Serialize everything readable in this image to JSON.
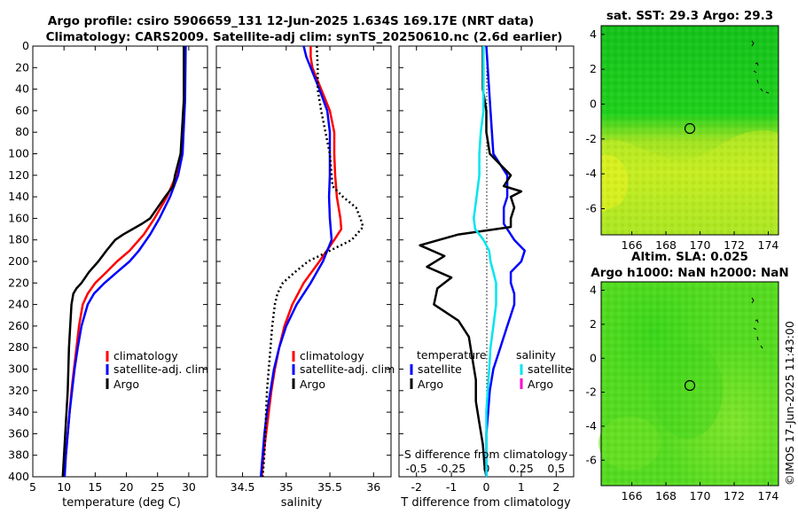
{
  "titles": {
    "line1": "Argo profile: csiro 5906659_131 12-Jun-2025 1.634S 169.17E (NRT data)",
    "line2": "Climatology: CARS2009. Satellite-adj clim: synTS_20250610.nc (2.6d earlier)"
  },
  "watermark": "©IMOS 17-Jun-2025 11:43:00",
  "colors": {
    "climatology": "#ff0000",
    "satellite": "#0000ff",
    "argo": "#000000",
    "sal_satellite": "#00e5ee",
    "sal_argo": "#ff00cc"
  },
  "chart_data": [
    {
      "type": "line",
      "id": "temperature",
      "xlabel": "temperature (deg C)",
      "xlim": [
        5,
        33
      ],
      "ylim": [
        400,
        0
      ],
      "xticks": [
        "5",
        "10",
        "15",
        "20",
        "25",
        "30"
      ],
      "yticks": [
        "0",
        "20",
        "40",
        "60",
        "80",
        "100",
        "120",
        "140",
        "160",
        "180",
        "200",
        "220",
        "240",
        "260",
        "280",
        "300",
        "320",
        "340",
        "360",
        "380",
        "400"
      ],
      "legend": [
        "climatology",
        "satellite-adj. clim",
        "Argo"
      ],
      "series": [
        {
          "name": "climatology",
          "depth": [
            0,
            50,
            100,
            120,
            140,
            160,
            175,
            190,
            200,
            210,
            220,
            230,
            240,
            260,
            280,
            300,
            320,
            340,
            360,
            380,
            400
          ],
          "values": [
            29.4,
            29.3,
            28.9,
            28.0,
            26.5,
            24.5,
            22.8,
            20.5,
            18.5,
            16.8,
            15.0,
            13.8,
            13.0,
            12.4,
            12.0,
            11.6,
            11.2,
            10.9,
            10.6,
            10.3,
            10.0
          ]
        },
        {
          "name": "satellite-adj. clim",
          "depth": [
            0,
            50,
            100,
            120,
            140,
            160,
            175,
            190,
            200,
            210,
            220,
            230,
            240,
            260,
            280,
            300,
            320,
            340,
            360,
            380,
            400
          ],
          "values": [
            29.5,
            29.4,
            29.0,
            28.3,
            27.0,
            25.3,
            23.8,
            22.0,
            20.5,
            18.5,
            16.5,
            14.8,
            13.8,
            12.8,
            12.2,
            11.7,
            11.3,
            10.9,
            10.6,
            10.3,
            10.1
          ]
        },
        {
          "name": "Argo",
          "depth": [
            0,
            50,
            100,
            120,
            130,
            140,
            150,
            160,
            165,
            170,
            175,
            180,
            185,
            190,
            200,
            210,
            220,
            225,
            230,
            240,
            260,
            280,
            300,
            320,
            340,
            360,
            380,
            400
          ],
          "values": [
            29.2,
            29.2,
            28.7,
            27.8,
            27.5,
            26.2,
            25.0,
            23.8,
            22.5,
            21.0,
            19.5,
            18.2,
            17.5,
            16.8,
            15.5,
            14.0,
            12.8,
            12.0,
            11.5,
            11.2,
            11.0,
            10.8,
            10.7,
            10.6,
            10.4,
            10.2,
            10.0,
            9.8
          ]
        }
      ]
    },
    {
      "type": "line",
      "id": "salinity",
      "xlabel": "salinity",
      "xlim": [
        34.2,
        36.2
      ],
      "ylim": [
        400,
        0
      ],
      "xticks": [
        "34.5",
        "35",
        "35.5",
        "36"
      ],
      "legend": [
        "climatology",
        "satellite-adj. clim",
        "Argo"
      ],
      "series": [
        {
          "name": "climatology",
          "depth": [
            0,
            10,
            20,
            40,
            60,
            80,
            100,
            120,
            140,
            160,
            170,
            180,
            200,
            220,
            240,
            260,
            280,
            300,
            320,
            340,
            360,
            380,
            400
          ],
          "values": [
            35.28,
            35.28,
            35.3,
            35.4,
            35.5,
            35.55,
            35.55,
            35.56,
            35.58,
            35.62,
            35.63,
            35.55,
            35.38,
            35.2,
            35.07,
            34.98,
            34.92,
            34.87,
            34.83,
            34.8,
            34.77,
            34.74,
            34.72
          ]
        },
        {
          "name": "satellite-adj. clim",
          "depth": [
            0,
            10,
            20,
            40,
            60,
            80,
            100,
            120,
            140,
            160,
            180,
            200,
            220,
            240,
            260,
            280,
            300,
            320,
            340,
            360,
            380,
            400
          ],
          "values": [
            35.2,
            35.23,
            35.28,
            35.38,
            35.47,
            35.5,
            35.5,
            35.5,
            35.49,
            35.5,
            35.52,
            35.42,
            35.28,
            35.12,
            35.0,
            34.92,
            34.86,
            34.82,
            34.78,
            34.75,
            34.73,
            34.71
          ]
        },
        {
          "name": "Argo",
          "depth": [
            0,
            20,
            40,
            60,
            80,
            100,
            120,
            130,
            140,
            150,
            160,
            168,
            180,
            190,
            200,
            210,
            220,
            230,
            240,
            260,
            280,
            300,
            320,
            340,
            360,
            380,
            400
          ],
          "values": [
            35.35,
            35.36,
            35.36,
            35.4,
            35.45,
            35.5,
            35.52,
            35.53,
            35.65,
            35.8,
            35.85,
            35.88,
            35.75,
            35.5,
            35.25,
            35.1,
            34.96,
            34.9,
            34.87,
            34.84,
            34.82,
            34.8,
            34.78,
            34.77,
            34.76,
            34.75,
            34.73
          ]
        }
      ]
    },
    {
      "type": "line",
      "id": "difference",
      "xlabel": "T difference from climatology",
      "xlabel_top": "S difference from climatology",
      "xlim": [
        -2.5,
        2.5
      ],
      "ylim": [
        400,
        0
      ],
      "xticks": [
        "-2",
        "-1",
        "0",
        "1",
        "2"
      ],
      "sticks": [
        "-0.5",
        "-0.25",
        "0",
        "0.25",
        "0.5"
      ],
      "legend_t_title": "temperature",
      "legend_s_title": "salinity",
      "legend_t": [
        "satellite",
        "Argo"
      ],
      "legend_s": [
        "satellite",
        "Argo"
      ],
      "series": [
        {
          "name": "T satellite",
          "depth": [
            0,
            50,
            100,
            120,
            140,
            150,
            165,
            170,
            180,
            190,
            200,
            210,
            220,
            230,
            240,
            250,
            260,
            280,
            300,
            320,
            340,
            360,
            380,
            400
          ],
          "values": [
            0.0,
            0.1,
            0.2,
            0.6,
            0.6,
            0.5,
            0.5,
            0.6,
            0.8,
            1.1,
            1.0,
            0.7,
            0.7,
            0.8,
            0.8,
            0.7,
            0.6,
            0.4,
            0.2,
            0.1,
            0.05,
            0.0,
            0.0,
            0.0
          ]
        },
        {
          "name": "T Argo",
          "depth": [
            0,
            20,
            40,
            60,
            80,
            100,
            110,
            120,
            130,
            135,
            140,
            150,
            160,
            168,
            175,
            185,
            195,
            205,
            215,
            225,
            240,
            255,
            270,
            290,
            310,
            330,
            350,
            370,
            390,
            400
          ],
          "values": [
            -0.1,
            -0.1,
            -0.1,
            0.0,
            0.0,
            0.1,
            0.4,
            0.7,
            0.5,
            1.0,
            0.7,
            0.8,
            0.7,
            0.7,
            -0.8,
            -1.9,
            -1.2,
            -1.7,
            -1.0,
            -1.4,
            -1.5,
            -0.8,
            -0.5,
            -0.4,
            -0.3,
            -0.3,
            -0.2,
            -0.1,
            -0.05,
            0.0
          ]
        },
        {
          "name": "S satellite",
          "depth": [
            0,
            10,
            20,
            40,
            60,
            80,
            100,
            120,
            140,
            160,
            170,
            180,
            190,
            200,
            210,
            220,
            240,
            260,
            280,
            300,
            320,
            340,
            360,
            380,
            400
          ],
          "values": [
            -0.02,
            -0.02,
            -0.02,
            -0.02,
            -0.02,
            -0.04,
            -0.05,
            -0.05,
            -0.07,
            -0.09,
            -0.08,
            -0.02,
            0.02,
            0.03,
            0.05,
            0.07,
            0.07,
            0.05,
            0.03,
            0.02,
            0.01,
            0.0,
            0.0,
            0.0,
            0.0
          ]
        }
      ]
    }
  ],
  "maps": {
    "sst": {
      "title": "sat. SST: 29.3 Argo: 29.3",
      "xticks": [
        "166",
        "168",
        "170",
        "172",
        "174"
      ],
      "yticks": [
        "4",
        "2",
        "0",
        "-2",
        "-4",
        "-6"
      ]
    },
    "sla": {
      "title1": "Altim. SLA: 0.025",
      "title2": "Argo h1000: NaN h2000: NaN",
      "xticks": [
        "166",
        "168",
        "170",
        "172",
        "174"
      ],
      "yticks": [
        "4",
        "2",
        "0",
        "-2",
        "-4",
        "-6"
      ]
    }
  }
}
